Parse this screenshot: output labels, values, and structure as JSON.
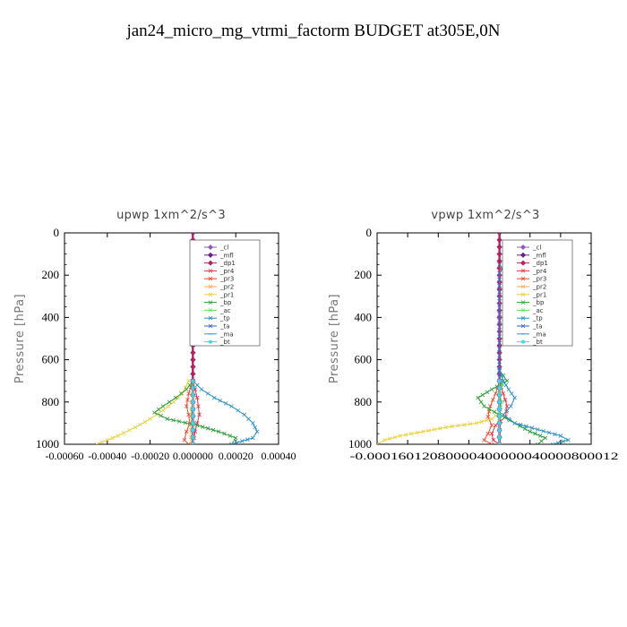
{
  "figure": {
    "title": "jan24_micro_mg_vtrmi_factorm  BUDGET at305E,0N"
  },
  "chart_data": [
    {
      "type": "line",
      "title": "upwp   1xm^2/s^3",
      "ylabel": "Pressure [hPa]",
      "xlabel": "",
      "ylim": [
        1000,
        0
      ],
      "xlim": [
        -0.0006,
        0.0004
      ],
      "yticks": [
        0,
        200,
        400,
        600,
        800,
        1000
      ],
      "ytick_labels": [
        "0",
        "200",
        "400",
        "600",
        "800",
        "1000"
      ],
      "xticks": [
        -0.0006,
        -0.0004,
        -0.0002,
        0.0,
        0.0002,
        0.0004
      ],
      "xtick_labels": [
        "-0.00060",
        "-0.00040",
        "-0.00020",
        "0.000000",
        "0.00020",
        "0.00040"
      ],
      "grid": false,
      "legend_position": "top-right",
      "series": [
        {
          "name": "_cl",
          "color": "#8a5cc2",
          "marker": "diamond",
          "p": [
            0,
            100,
            200,
            300,
            400,
            500,
            600,
            700,
            800,
            900,
            1000
          ],
          "values": [
            0,
            0,
            0,
            0,
            0,
            0,
            0,
            0,
            0,
            0,
            0
          ]
        },
        {
          "name": "_mfl",
          "color": "#6a1a8a",
          "marker": "diamond",
          "p": [
            0,
            100,
            200,
            300,
            400,
            500,
            600,
            700,
            800,
            900,
            1000
          ],
          "values": [
            0,
            0,
            0,
            0,
            0,
            0,
            0,
            0,
            0,
            0,
            0
          ]
        },
        {
          "name": "_dp1",
          "color": "#b0245e",
          "marker": "diamond",
          "p": [
            0,
            100,
            200,
            300,
            400,
            500,
            600,
            700,
            800,
            900,
            1000
          ],
          "values": [
            0,
            0,
            0,
            0,
            0,
            0,
            0,
            0,
            0,
            0,
            0
          ]
        },
        {
          "name": "_pr4",
          "color": "#e8303c",
          "marker": "x",
          "p": [
            700,
            740,
            780,
            820,
            860,
            900,
            940,
            970,
            1000
          ],
          "values": [
            0,
            1e-05,
            2e-05,
            2.5e-05,
            3e-05,
            2e-05,
            1e-05,
            5e-06,
            0
          ]
        },
        {
          "name": "_pr3",
          "color": "#ee4b2b",
          "marker": "x",
          "p": [
            700,
            760,
            820,
            860,
            900,
            940,
            980,
            1000
          ],
          "values": [
            0,
            -2e-05,
            -3e-05,
            -2e-05,
            -1.5e-05,
            -3e-05,
            -4e-05,
            -2e-05
          ]
        },
        {
          "name": "_pr2",
          "color": "#ffa84c",
          "marker": "x",
          "p": [
            700,
            800,
            900,
            1000
          ],
          "values": [
            0,
            -5e-06,
            -1e-05,
            -1e-05
          ]
        },
        {
          "name": "_pr1",
          "color": "#e8d23a",
          "marker": "x",
          "p": [
            700,
            760,
            800,
            840,
            880,
            920,
            960,
            980,
            1000
          ],
          "values": [
            -2e-05,
            -5e-05,
            -9e-05,
            -0.00014,
            -0.0002,
            -0.00027,
            -0.00035,
            -0.0004,
            -0.00045
          ]
        },
        {
          "name": "_bp",
          "color": "#2e9e3a",
          "marker": "x",
          "p": [
            700,
            740,
            780,
            820,
            850,
            880,
            910,
            940,
            970,
            1000
          ],
          "values": [
            0,
            -3e-05,
            -8e-05,
            -0.00014,
            -0.00018,
            -0.00012,
            2e-05,
            0.00012,
            0.0002,
            0.00018
          ]
        },
        {
          "name": "_ac",
          "color": "#5ce65c",
          "marker": "x",
          "p": [
            700,
            800,
            900,
            1000
          ],
          "values": [
            0,
            0,
            0,
            0
          ]
        },
        {
          "name": "_tp",
          "color": "#2a8ec4",
          "marker": "x",
          "p": [
            700,
            740,
            780,
            820,
            860,
            900,
            940,
            970,
            1000
          ],
          "values": [
            0,
            4e-05,
            0.0001,
            0.00018,
            0.00024,
            0.00028,
            0.0003,
            0.00028,
            0.00018
          ]
        },
        {
          "name": "_ta",
          "color": "#3a5fd6",
          "marker": "x",
          "p": [
            700,
            800,
            900,
            1000
          ],
          "values": [
            0,
            0,
            0,
            0
          ]
        },
        {
          "name": "_ma",
          "color": "#1fa0e0",
          "marker": "dash",
          "p": [
            700,
            800,
            900,
            1000
          ],
          "values": [
            0,
            0,
            0,
            0
          ]
        },
        {
          "name": "_bt",
          "color": "#3fd6e6",
          "marker": "circle",
          "p": [
            700,
            800,
            900,
            1000
          ],
          "values": [
            0,
            0,
            0,
            0
          ]
        }
      ]
    },
    {
      "type": "line",
      "title": "vpwp   1xm^2/s^3",
      "ylabel": "Pressure [hPa]",
      "xlabel": "",
      "ylim": [
        1000,
        0
      ],
      "xlim": [
        -0.00016,
        0.00012
      ],
      "yticks": [
        0,
        200,
        400,
        600,
        800,
        1000
      ],
      "ytick_labels": [
        "0",
        "200",
        "400",
        "600",
        "800",
        "1000"
      ],
      "xticks": [
        -0.00016,
        -0.00012,
        -8e-05,
        -4e-05,
        0.0,
        4e-05,
        8e-05,
        0.00012
      ],
      "xtick_labels": [
        "-0.00016",
        "-0.00012",
        "-0.00008",
        "-0.00004",
        "0.000000",
        "0.00004",
        "0.00008",
        "0.00012"
      ],
      "xtick_strip": "-0.00016012080000400000040000800012",
      "grid": false,
      "legend_position": "top-right",
      "series": [
        {
          "name": "_cl",
          "color": "#8a5cc2",
          "marker": "diamond",
          "p": [
            0,
            100,
            200,
            300,
            400,
            500,
            600,
            700,
            800,
            900,
            1000
          ],
          "values": [
            0,
            0,
            0,
            0,
            0,
            0,
            0,
            0,
            0,
            0,
            0
          ]
        },
        {
          "name": "_mfl",
          "color": "#6a1a8a",
          "marker": "diamond",
          "p": [
            0,
            100,
            200,
            300,
            400,
            500,
            600,
            700,
            800,
            900,
            1000
          ],
          "values": [
            0,
            0,
            0,
            0,
            0,
            0,
            0,
            0,
            0,
            0,
            0
          ]
        },
        {
          "name": "_dp1",
          "color": "#b0245e",
          "marker": "diamond",
          "p": [
            0,
            100,
            200,
            300,
            400,
            500,
            600,
            700,
            800,
            900,
            1000
          ],
          "values": [
            0,
            0,
            0,
            0,
            0,
            0,
            0,
            0,
            0,
            0,
            0
          ]
        },
        {
          "name": "_pr4",
          "color": "#e8303c",
          "marker": "x",
          "p": [
            700,
            760,
            820,
            870,
            910,
            950,
            980,
            1000
          ],
          "values": [
            0,
            5e-06,
            1e-05,
            8e-06,
            -5e-06,
            -1e-05,
            -8e-06,
            0
          ]
        },
        {
          "name": "_pr3",
          "color": "#ee4b2b",
          "marker": "x",
          "p": [
            700,
            760,
            820,
            870,
            910,
            950,
            980,
            1000
          ],
          "values": [
            0,
            -5e-06,
            -1.2e-05,
            -1.5e-05,
            -1e-05,
            -1.5e-05,
            -2e-05,
            -1e-05
          ]
        },
        {
          "name": "_pr2",
          "color": "#ffa84c",
          "marker": "x",
          "p": [
            150,
            170,
            190,
            700,
            800,
            900,
            1000
          ],
          "values": [
            0,
            3e-06,
            0,
            0,
            0,
            0,
            0
          ]
        },
        {
          "name": "_pr1",
          "color": "#e8d23a",
          "marker": "x",
          "p": [
            850,
            880,
            900,
            920,
            940,
            960,
            980,
            1000
          ],
          "values": [
            0,
            -1e-05,
            -3e-05,
            -7e-05,
            -0.0001,
            -0.00013,
            -0.00015,
            -0.00016
          ]
        },
        {
          "name": "_bp",
          "color": "#2e9e3a",
          "marker": "x",
          "p": [
            650,
            700,
            740,
            780,
            820,
            860,
            900,
            940,
            970,
            1000
          ],
          "values": [
            0,
            1e-05,
            -1e-05,
            -2.8e-05,
            -2e-05,
            0,
            2e-05,
            4e-05,
            6e-05,
            5e-05
          ]
        },
        {
          "name": "_ac",
          "color": "#5ce65c",
          "marker": "x",
          "p": [
            650,
            700,
            760,
            800,
            850,
            900,
            1000
          ],
          "values": [
            0,
            5e-06,
            0,
            3e-06,
            0,
            0,
            0
          ]
        },
        {
          "name": "_tp",
          "color": "#2a8ec4",
          "marker": "x",
          "p": [
            650,
            700,
            740,
            780,
            820,
            860,
            900,
            930,
            960,
            980,
            1000
          ],
          "values": [
            0,
            5e-06,
            1.2e-05,
            2e-05,
            1.5e-05,
            5e-06,
            2e-05,
            5e-05,
            8e-05,
            9e-05,
            7e-05
          ]
        },
        {
          "name": "_ta",
          "color": "#3a5fd6",
          "marker": "x",
          "p": [
            150,
            170,
            190,
            700,
            800,
            900,
            1000
          ],
          "values": [
            0,
            4e-06,
            0,
            0,
            0,
            0,
            0
          ]
        },
        {
          "name": "_ma",
          "color": "#1fa0e0",
          "marker": "dash",
          "p": [
            700,
            800,
            900,
            1000
          ],
          "values": [
            0,
            0,
            0,
            0
          ]
        },
        {
          "name": "_bt",
          "color": "#3fd6e6",
          "marker": "circle",
          "p": [
            700,
            800,
            900,
            1000
          ],
          "values": [
            0,
            0,
            0,
            0
          ]
        }
      ]
    }
  ]
}
